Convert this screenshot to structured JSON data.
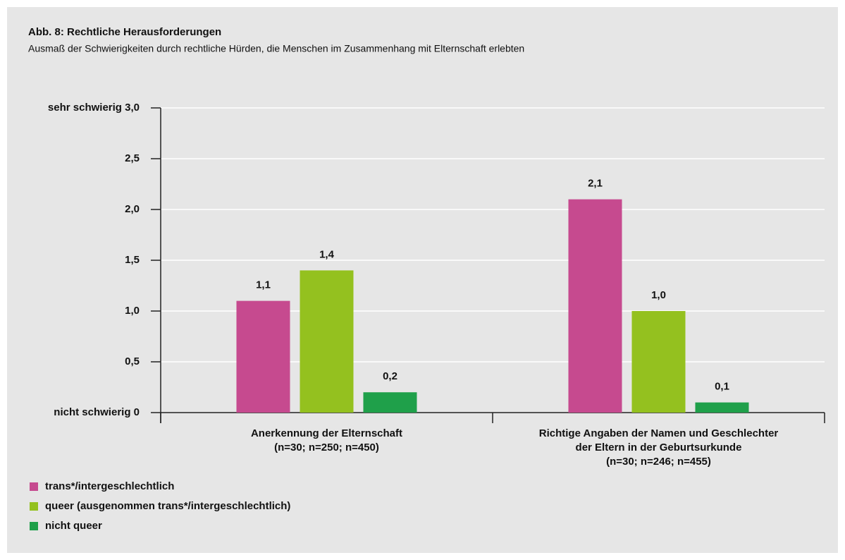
{
  "chart_data": {
    "type": "bar",
    "title": "Abb. 8: Rechtliche Herausforderungen",
    "subtitle": "Ausmaß der Schwierigkeiten durch rechtliche Hürden, die Menschen im Zusammenhang mit Elternschaft erlebten",
    "categories": [
      [
        "Anerkennung der Elternschaft",
        "(n=30; n=250; n=450)"
      ],
      [
        "Richtige Angaben der Namen und Geschlechter",
        "der Eltern in der Geburtsurkunde",
        "(n=30; n=246; n=455)"
      ]
    ],
    "series": [
      {
        "name": "trans*/intergeschlechtlich",
        "color": "#c64a8f",
        "values": [
          1.1,
          2.1
        ],
        "value_labels": [
          "1,1",
          "2,1"
        ]
      },
      {
        "name": "queer (ausgenommen trans*/intergeschlechtlich)",
        "color": "#94c11f",
        "values": [
          1.4,
          1.0
        ],
        "value_labels": [
          "1,4",
          "1,0"
        ]
      },
      {
        "name": "nicht queer",
        "color": "#1fa04a",
        "values": [
          0.2,
          0.1
        ],
        "value_labels": [
          "0,2",
          "0,1"
        ]
      }
    ],
    "ylim": [
      0,
      3
    ],
    "yticks": [
      {
        "value": 0,
        "label": "nicht schwierig 0"
      },
      {
        "value": 0.5,
        "label": "0,5"
      },
      {
        "value": 1,
        "label": "1,0"
      },
      {
        "value": 1.5,
        "label": "1,5"
      },
      {
        "value": 2,
        "label": "2,0"
      },
      {
        "value": 2.5,
        "label": "2,5"
      },
      {
        "value": 3,
        "label": "sehr schwierig 3,0"
      }
    ],
    "grid": true,
    "legend": "bottom-left"
  }
}
